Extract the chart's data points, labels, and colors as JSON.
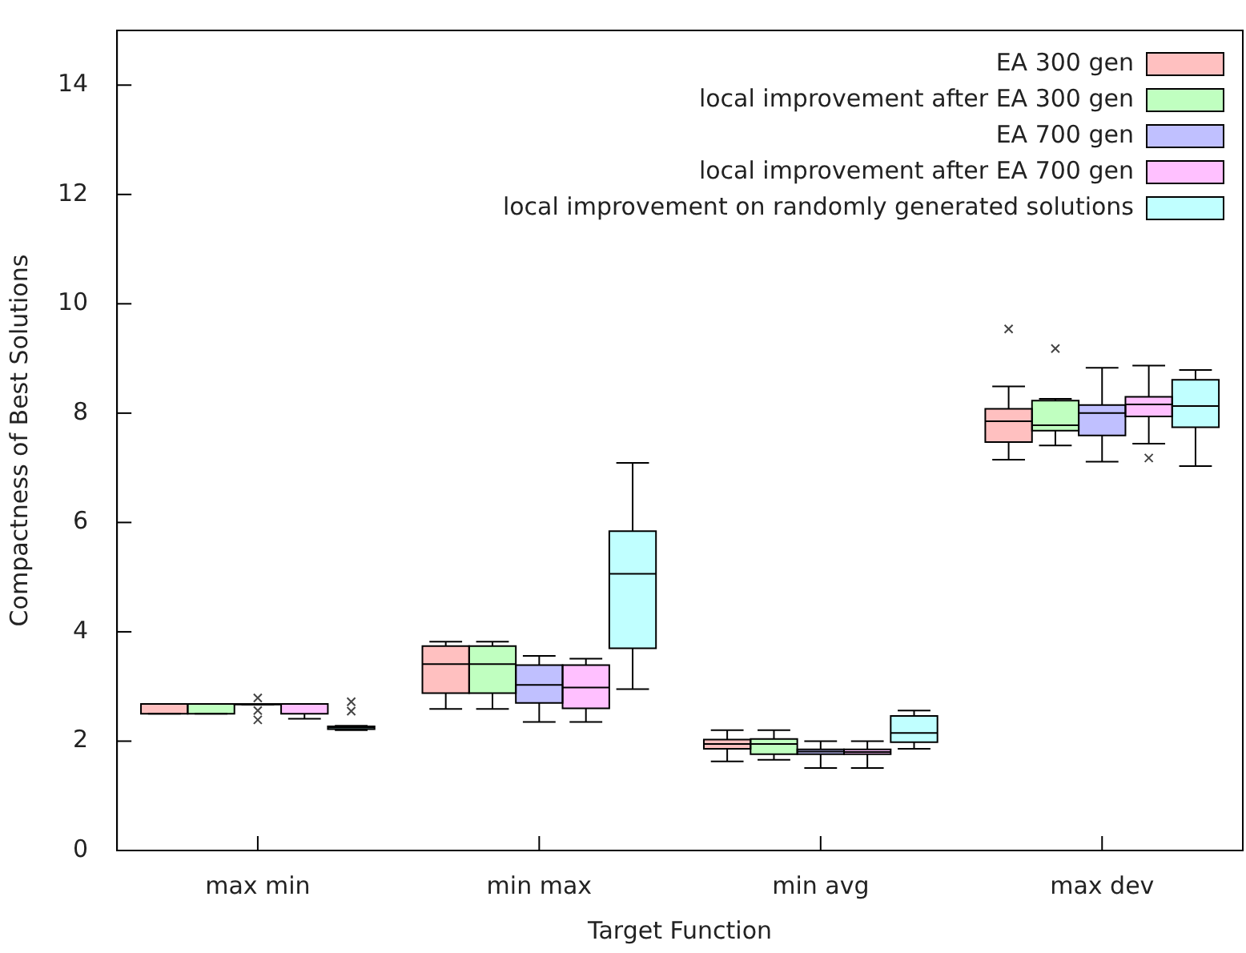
{
  "chart_data": {
    "type": "box",
    "xlabel": "Target Function",
    "ylabel": "Compactness of Best Solutions",
    "categories": [
      "max min",
      "min max",
      "min avg",
      "max dev"
    ],
    "ylim": [
      0,
      15
    ],
    "yticks": [
      0,
      2,
      4,
      6,
      8,
      10,
      12,
      14
    ],
    "legend": "top right",
    "marker": "cross",
    "series": [
      {
        "name": "EA 300 gen",
        "color": "#ffc0c0",
        "boxes": [
          {
            "low": 2.5,
            "q1": 2.5,
            "median": 2.68,
            "q3": 2.68,
            "high": 2.68
          },
          {
            "low": 2.59,
            "q1": 2.88,
            "median": 3.41,
            "q3": 3.74,
            "high": 3.82
          },
          {
            "low": 1.63,
            "q1": 1.86,
            "median": 1.95,
            "q3": 2.03,
            "high": 2.2
          },
          {
            "low": 7.15,
            "q1": 7.47,
            "median": 7.85,
            "q3": 8.08,
            "high": 8.49,
            "outliers": [
              9.54
            ]
          }
        ]
      },
      {
        "name": "local improvement after EA 300 gen",
        "color": "#c0ffc0",
        "boxes": [
          {
            "low": 2.5,
            "q1": 2.5,
            "median": 2.68,
            "q3": 2.68,
            "high": 2.68
          },
          {
            "low": 2.59,
            "q1": 2.88,
            "median": 3.41,
            "q3": 3.74,
            "high": 3.82
          },
          {
            "low": 1.66,
            "q1": 1.76,
            "median": 1.95,
            "q3": 2.04,
            "high": 2.2
          },
          {
            "low": 7.41,
            "q1": 7.68,
            "median": 7.78,
            "q3": 8.23,
            "high": 8.26,
            "outliers": [
              9.18
            ]
          }
        ]
      },
      {
        "name": "EA 700 gen",
        "color": "#c0c0ff",
        "boxes": [
          {
            "low": 2.67,
            "q1": 2.67,
            "median": 2.68,
            "q3": 2.68,
            "high": 2.68,
            "outliers": [
              2.39,
              2.56,
              2.79
            ]
          },
          {
            "low": 2.35,
            "q1": 2.7,
            "median": 3.03,
            "q3": 3.39,
            "high": 3.56
          },
          {
            "low": 1.51,
            "q1": 1.76,
            "median": 1.81,
            "q3": 1.85,
            "high": 2.0
          },
          {
            "low": 7.11,
            "q1": 7.59,
            "median": 8.0,
            "q3": 8.15,
            "high": 8.83
          }
        ]
      },
      {
        "name": "local improvement after EA 700 gen",
        "color": "#ffc0ff",
        "boxes": [
          {
            "low": 2.41,
            "q1": 2.5,
            "median": 2.68,
            "q3": 2.68,
            "high": 2.68
          },
          {
            "low": 2.35,
            "q1": 2.6,
            "median": 2.98,
            "q3": 3.39,
            "high": 3.51
          },
          {
            "low": 1.51,
            "q1": 1.76,
            "median": 1.8,
            "q3": 1.85,
            "high": 2.0
          },
          {
            "low": 7.44,
            "q1": 7.94,
            "median": 8.16,
            "q3": 8.3,
            "high": 8.87,
            "outliers": [
              7.18
            ]
          }
        ]
      },
      {
        "name": "local improvement on randomly generated solutions",
        "color": "#c0ffff",
        "boxes": [
          {
            "low": 2.2,
            "q1": 2.22,
            "median": 2.25,
            "q3": 2.27,
            "high": 2.28,
            "outliers": [
              2.55,
              2.72
            ]
          },
          {
            "low": 2.95,
            "q1": 3.7,
            "median": 5.06,
            "q3": 5.84,
            "high": 7.09
          },
          {
            "low": 1.86,
            "q1": 1.98,
            "median": 2.15,
            "q3": 2.46,
            "high": 2.56
          },
          {
            "low": 7.03,
            "q1": 7.74,
            "median": 8.13,
            "q3": 8.61,
            "high": 8.79
          }
        ]
      }
    ]
  }
}
